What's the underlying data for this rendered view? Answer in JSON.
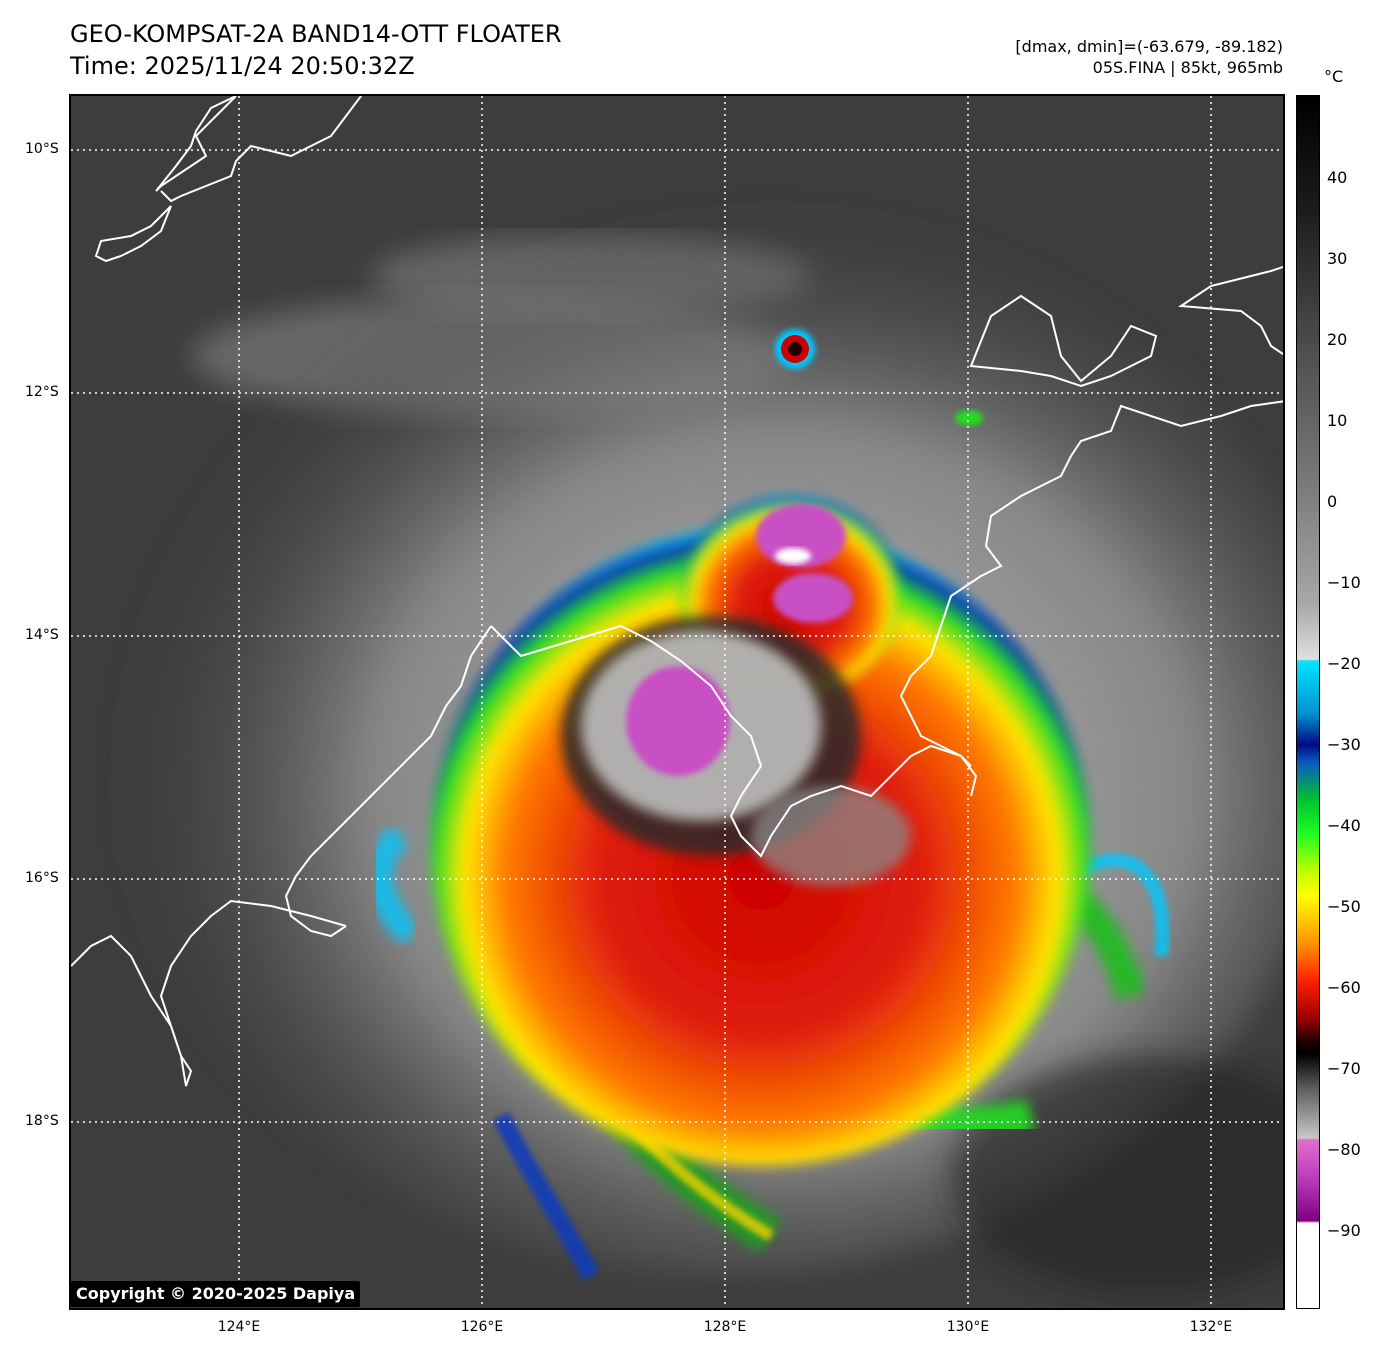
{
  "header": {
    "title_line1": "GEO-KOMPSAT-2A BAND14-OTT FLOATER",
    "title_line2": "Time: 2025/11/24 20:50:32Z",
    "stats_line": "[dmax, dmin]=(-63.679, -89.182)",
    "storm_line": "05S.FINA | 85kt, 965mb"
  },
  "map": {
    "lat_labels": [
      "10°S",
      "12°S",
      "14°S",
      "16°S",
      "18°S"
    ],
    "lon_labels": [
      "124°E",
      "126°E",
      "128°E",
      "130°E",
      "132°E"
    ]
  },
  "colorbar": {
    "unit": "°C",
    "ticks": [
      "40",
      "30",
      "20",
      "10",
      "0",
      "−10",
      "−20",
      "−30",
      "−40",
      "−50",
      "−60",
      "−70",
      "−80",
      "−90"
    ]
  },
  "footer": {
    "copyright": "Copyright © 2020-2025 Dapiya"
  }
}
